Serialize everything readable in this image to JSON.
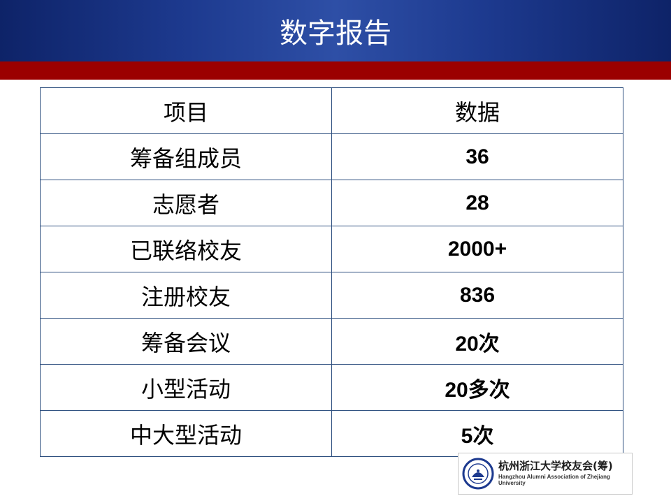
{
  "slide": {
    "title": "数字报告"
  },
  "table": {
    "headers": [
      "项目",
      "数据"
    ],
    "rows": [
      {
        "item": "筹备组成员",
        "value": "36"
      },
      {
        "item": "志愿者",
        "value": "28"
      },
      {
        "item": "已联络校友",
        "value": "2000+"
      },
      {
        "item": "注册校友",
        "value": "836"
      },
      {
        "item": "筹备会议",
        "value": "20次"
      },
      {
        "item": "小型活动",
        "value": "20多次"
      },
      {
        "item": "中大型活动",
        "value": "5次"
      }
    ]
  },
  "logo": {
    "name_cn": "杭州浙江大学校友会(筹)",
    "name_en": "Hangzhou Alumni Association of Zhejiang University"
  },
  "colors": {
    "header_blue": "#1d3a8f",
    "accent_red": "#9b0000",
    "table_border": "#2e4f7f"
  }
}
